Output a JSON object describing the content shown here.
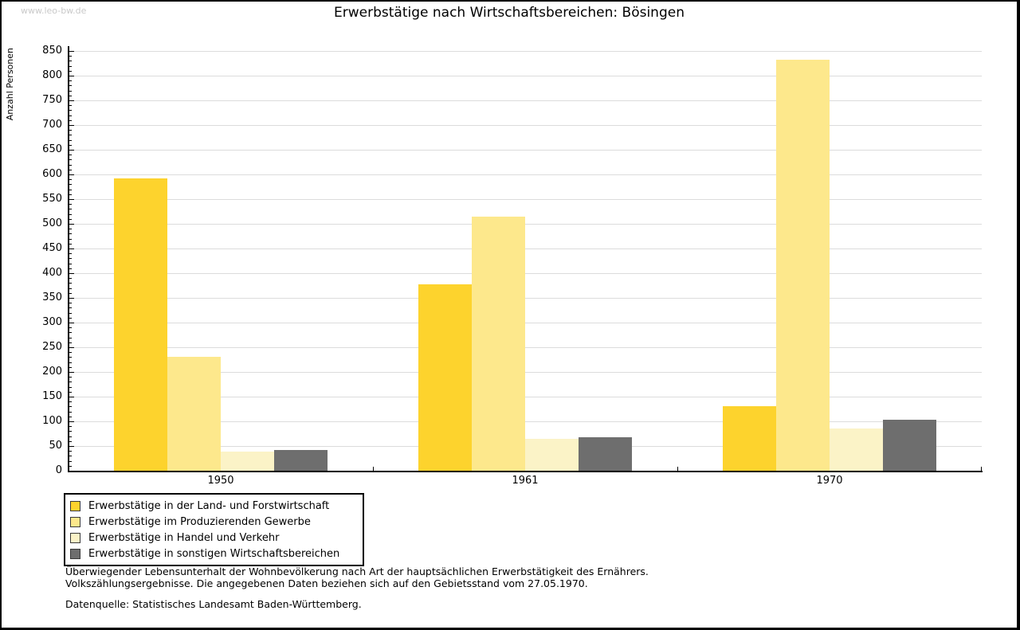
{
  "watermark": "www.leo-bw.de",
  "title": "Erwerbstätige nach Wirtschaftsbereichen: Bösingen",
  "chart_data": {
    "type": "bar",
    "title": "Erwerbstätige nach Wirtschaftsbereichen: Bösingen",
    "xlabel": "",
    "ylabel": "Anzahl Personen",
    "categories": [
      "1950",
      "1961",
      "1970"
    ],
    "series": [
      {
        "name": "Erwerbstätige in der Land- und Forstwirtschaft",
        "color": "#FDD32D",
        "values": [
          592,
          377,
          130
        ]
      },
      {
        "name": "Erwerbstätige im Produzierenden Gewerbe",
        "color": "#FDE88C",
        "values": [
          230,
          515,
          832
        ]
      },
      {
        "name": "Erwerbstätige in Handel und Verkehr",
        "color": "#FBF3C7",
        "values": [
          38,
          64,
          85
        ]
      },
      {
        "name": "Erwerbstätige in sonstigen Wirtschaftsbereichen",
        "color": "#6E6E6E",
        "values": [
          42,
          67,
          104
        ]
      }
    ],
    "ylim": [
      0,
      860
    ],
    "ytick_step": 50,
    "yminor_step": 10,
    "grid": true,
    "gridline_color": "#DCDCDC",
    "legend_position": "bottom-left"
  },
  "footnotes": [
    "Überwiegender Lebensunterhalt der Wohnbevölkerung nach Art der hauptsächlichen Erwerbstätigkeit des Ernährers.",
    "Volkszählungsergebnisse. Die angegebenen Daten beziehen sich auf den Gebietsstand vom 27.05.1970."
  ],
  "source": "Datenquelle: Statistisches Landesamt Baden-Württemberg."
}
